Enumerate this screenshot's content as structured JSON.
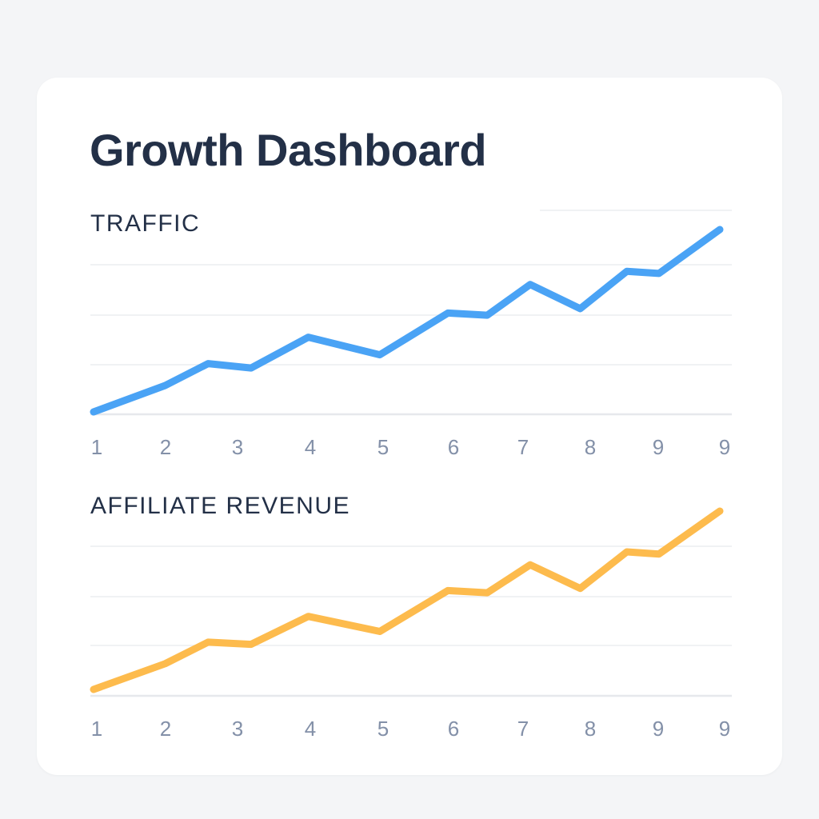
{
  "dashboard": {
    "title": "Growth Dashboard"
  },
  "chart_data": [
    {
      "type": "line",
      "title": "TRAFFIC",
      "categories": [
        "1",
        "2",
        "3",
        "4",
        "5",
        "6",
        "7",
        "8",
        "9",
        "9"
      ],
      "series": [
        {
          "values": [
            0,
            12,
            22,
            20,
            34,
            26,
            45,
            44,
            58,
            47,
            64,
            63,
            83
          ],
          "color": "#4aa3f5"
        }
      ],
      "x": [
        1,
        2,
        2.6,
        3.2,
        4,
        5,
        5.95,
        6.5,
        7.1,
        7.8,
        8.45,
        8.9,
        9.75
      ],
      "ylim": [
        0,
        85
      ],
      "grid": true,
      "gridline_color": "#eceef1"
    },
    {
      "type": "line",
      "title": "AFFILIATE REVENUE",
      "categories": [
        "1",
        "2",
        "3",
        "4",
        "5",
        "6",
        "7",
        "8",
        "9",
        "9"
      ],
      "series": [
        {
          "values": [
            0,
            12,
            22,
            21,
            34,
            27,
            46,
            45,
            58,
            47,
            64,
            63,
            83
          ],
          "color": "#fdbb4d"
        }
      ],
      "x": [
        1,
        2,
        2.6,
        3.2,
        4,
        5,
        5.95,
        6.5,
        7.1,
        7.8,
        8.45,
        8.9,
        9.75
      ],
      "ylim": [
        0,
        85
      ],
      "grid": true,
      "gridline_color": "#eceef1"
    }
  ],
  "colors": {
    "background": "#f4f5f7",
    "card": "#ffffff",
    "text": "#233047",
    "tick": "#8390a8"
  }
}
